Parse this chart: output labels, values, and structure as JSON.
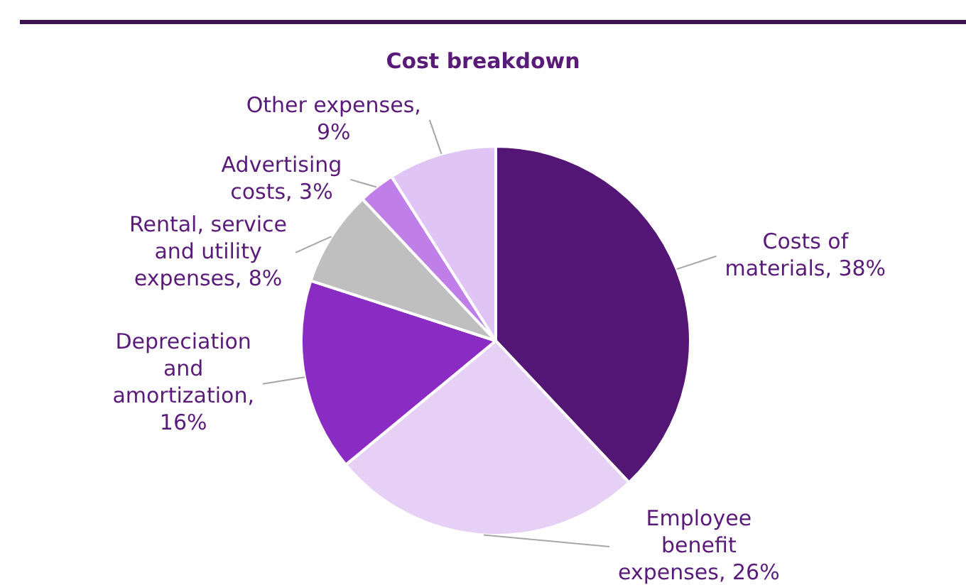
{
  "chart_data": {
    "type": "pie",
    "title": "Cost breakdown",
    "categories": [
      "Costs of materials, 38%",
      "Employee benefit expenses, 26%",
      "Depreciation and amortization, 16%",
      "Rental, service and utility expenses, 8%",
      "Advertising costs, 3%",
      "Other expenses, 9%"
    ],
    "values": [
      38,
      26,
      16,
      8,
      3,
      9
    ],
    "colors": [
      "#541675",
      "#e6d0f5",
      "#8a2bc4",
      "#bfbfbf",
      "#c07ee8",
      "#e0c4f5"
    ]
  }
}
